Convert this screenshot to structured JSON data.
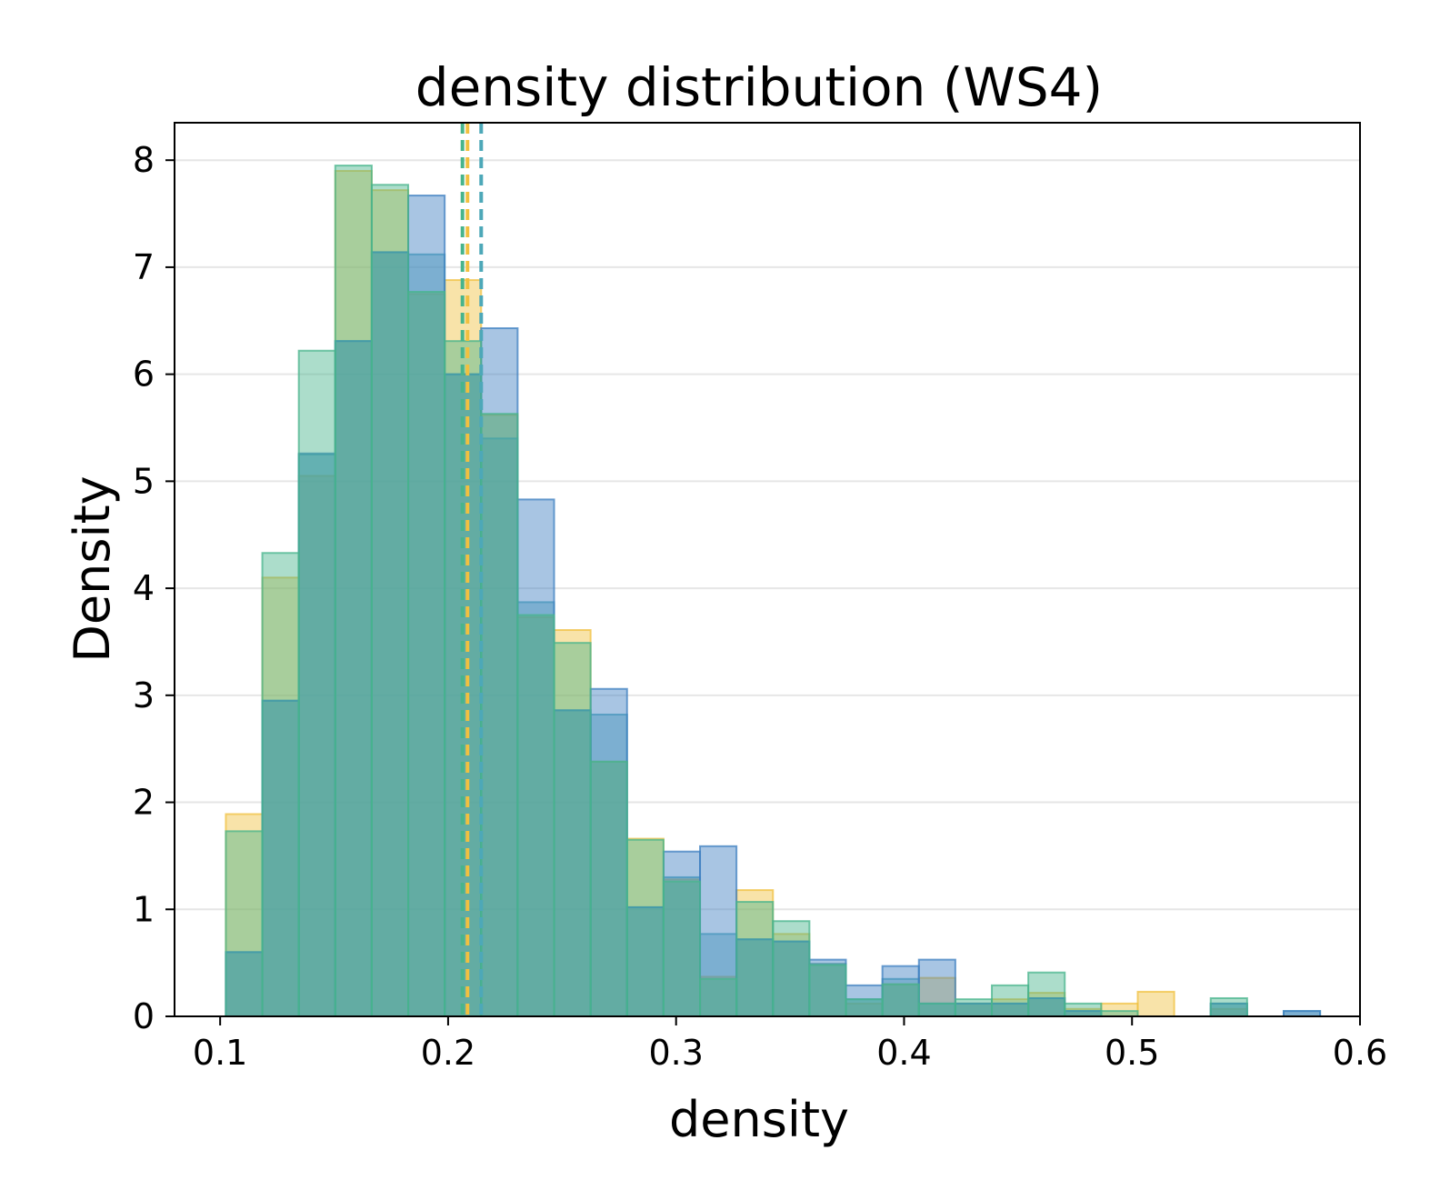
{
  "chart_data": {
    "type": "bar",
    "title": "density distribution (WS4)",
    "xlabel": "density",
    "ylabel": "Density",
    "xlim": [
      0.08,
      0.6
    ],
    "ylim": [
      0,
      8.35
    ],
    "xticks": [
      "0.1",
      "0.2",
      "0.3",
      "0.4",
      "0.5",
      "0.6"
    ],
    "xtick_values": [
      0.1,
      0.2,
      0.3,
      0.4,
      0.5,
      0.6
    ],
    "yticks": [
      "0",
      "1",
      "2",
      "3",
      "4",
      "5",
      "6",
      "7",
      "8"
    ],
    "ytick_values": [
      0,
      1,
      2,
      3,
      4,
      5,
      6,
      7,
      8
    ],
    "grid": "horizontal",
    "bin_start": 0.1025,
    "bin_width": 0.016,
    "series": [
      {
        "color": "#f0c040",
        "values": [
          1.89,
          4.1,
          5.05,
          7.9,
          7.72,
          6.75,
          6.88,
          5.62,
          3.73,
          3.61,
          2.38,
          1.66,
          1.28,
          0.37,
          1.18,
          0.77,
          0.49,
          0.12,
          0.3,
          0.36,
          0.12,
          0.16,
          0.22,
          0.07,
          0.12,
          0.23,
          0.0,
          0.07,
          0.0,
          0.0
        ],
        "mean": 0.2085
      },
      {
        "color": "#4da8b8",
        "values": [
          0.6,
          2.95,
          5.25,
          6.31,
          7.14,
          7.12,
          6.0,
          5.4,
          3.87,
          2.86,
          2.82,
          1.02,
          1.3,
          0.77,
          0.72,
          0.7,
          0.49,
          0.16,
          0.35,
          0.12,
          0.12,
          0.12,
          0.17,
          0.05,
          0.0,
          0.0,
          0.0,
          0.12,
          0.0,
          0.05
        ],
        "mean": 0.2145
      },
      {
        "color": "#3e7fc0",
        "values": [
          0.6,
          2.95,
          5.26,
          6.31,
          7.14,
          7.67,
          6.0,
          6.43,
          4.83,
          2.86,
          3.06,
          1.02,
          1.54,
          1.59,
          0.72,
          0.7,
          0.53,
          0.29,
          0.47,
          0.53,
          0.12,
          0.12,
          0.17,
          0.05,
          0.0,
          0.0,
          0.0,
          0.12,
          0.0,
          0.05
        ],
        "mean": 0.2145
      },
      {
        "color": "#48b48c",
        "values": [
          1.73,
          4.33,
          6.22,
          7.95,
          7.77,
          6.77,
          6.31,
          5.63,
          3.75,
          3.49,
          2.38,
          1.65,
          1.26,
          0.35,
          1.07,
          0.89,
          0.48,
          0.16,
          0.3,
          0.12,
          0.16,
          0.29,
          0.41,
          0.12,
          0.05,
          0.0,
          0.0,
          0.17,
          0.0,
          0.0
        ],
        "mean": 0.2063
      }
    ]
  }
}
